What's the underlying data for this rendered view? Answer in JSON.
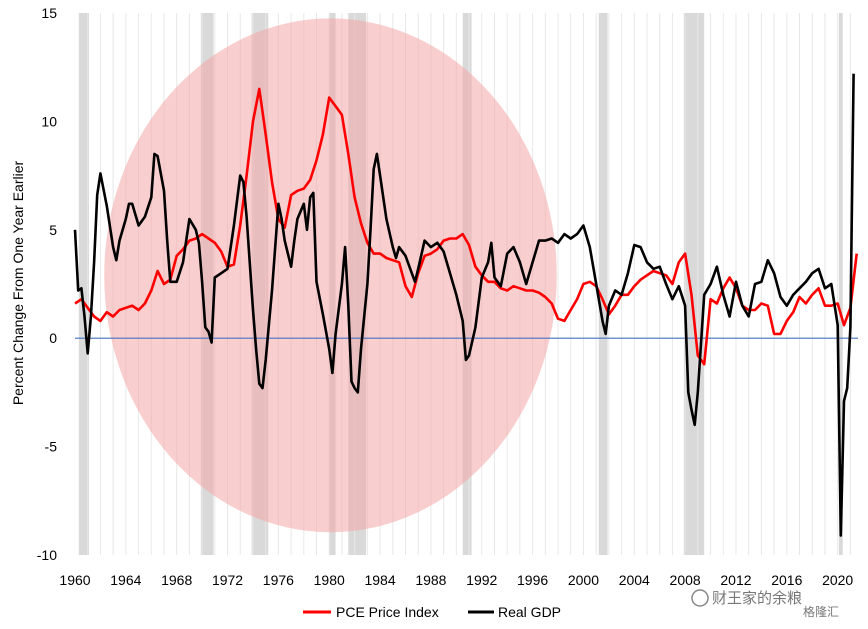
{
  "chart_data": {
    "type": "line",
    "xlim": [
      1960,
      2021.6
    ],
    "ylim": [
      -10,
      15
    ],
    "y_ticks": [
      -10,
      -5,
      0,
      5,
      10,
      15
    ],
    "y_tick_labels": [
      "-10",
      "-5",
      "0",
      "5",
      "10",
      "15"
    ],
    "x_ticks": [
      1960,
      1964,
      1968,
      1972,
      1976,
      1980,
      1984,
      1988,
      1992,
      1996,
      2000,
      2004,
      2008,
      2012,
      2016,
      2020
    ],
    "x_tick_labels": [
      "1960",
      "1964",
      "1968",
      "1972",
      "1976",
      "1980",
      "1984",
      "1988",
      "1992",
      "1996",
      "2000",
      "2004",
      "2008",
      "2012",
      "2016",
      "2020"
    ],
    "ylabel": "Percent Change From One Year Earlier",
    "xlabel": "",
    "grid": "vertical",
    "zero_line_color": "#4472C4",
    "recession_color": "#D9D9D9",
    "recessions": [
      [
        1960.3,
        1961.1
      ],
      [
        1969.9,
        1970.9
      ],
      [
        1973.9,
        1975.2
      ],
      [
        1980.0,
        1980.5
      ],
      [
        1981.5,
        1982.9
      ],
      [
        1990.5,
        1991.2
      ],
      [
        2001.2,
        2001.9
      ],
      [
        2007.9,
        2009.5
      ],
      [
        2020.1,
        2020.4
      ]
    ],
    "highlight_ellipse": {
      "x_center": 1980.1,
      "y_center": 2.9,
      "x_radius": 17.8,
      "y_radius": 11.85,
      "color": "#F4A6A6"
    },
    "legend_position": "bottom-center",
    "series": [
      {
        "name": "PCE Price Index",
        "color": "#FF0000",
        "points": [
          [
            1960,
            1.6
          ],
          [
            1960.5,
            1.8
          ],
          [
            1961,
            1.4
          ],
          [
            1961.5,
            1.0
          ],
          [
            1962,
            0.8
          ],
          [
            1962.5,
            1.2
          ],
          [
            1963,
            1.0
          ],
          [
            1963.5,
            1.3
          ],
          [
            1964,
            1.4
          ],
          [
            1964.5,
            1.5
          ],
          [
            1965,
            1.3
          ],
          [
            1965.5,
            1.6
          ],
          [
            1966,
            2.2
          ],
          [
            1966.5,
            3.1
          ],
          [
            1967,
            2.5
          ],
          [
            1967.5,
            2.7
          ],
          [
            1968,
            3.8
          ],
          [
            1968.5,
            4.1
          ],
          [
            1969,
            4.5
          ],
          [
            1969.5,
            4.6
          ],
          [
            1970,
            4.8
          ],
          [
            1970.5,
            4.6
          ],
          [
            1971,
            4.4
          ],
          [
            1971.5,
            4.0
          ],
          [
            1972,
            3.3
          ],
          [
            1972.5,
            3.4
          ],
          [
            1973,
            5.2
          ],
          [
            1973.5,
            7.5
          ],
          [
            1974,
            10.0
          ],
          [
            1974.5,
            11.5
          ],
          [
            1975,
            9.4
          ],
          [
            1975.5,
            7.2
          ],
          [
            1976,
            5.5
          ],
          [
            1976.5,
            5.1
          ],
          [
            1977,
            6.6
          ],
          [
            1977.5,
            6.8
          ],
          [
            1978,
            6.9
          ],
          [
            1978.5,
            7.3
          ],
          [
            1979,
            8.2
          ],
          [
            1979.5,
            9.4
          ],
          [
            1980,
            11.1
          ],
          [
            1980.5,
            10.7
          ],
          [
            1981,
            10.3
          ],
          [
            1981.5,
            8.5
          ],
          [
            1982,
            6.5
          ],
          [
            1982.5,
            5.3
          ],
          [
            1983,
            4.4
          ],
          [
            1983.5,
            3.9
          ],
          [
            1984,
            3.9
          ],
          [
            1984.5,
            3.7
          ],
          [
            1985,
            3.6
          ],
          [
            1985.5,
            3.5
          ],
          [
            1986,
            2.4
          ],
          [
            1986.5,
            1.9
          ],
          [
            1987,
            3.0
          ],
          [
            1987.5,
            3.8
          ],
          [
            1988,
            3.9
          ],
          [
            1988.5,
            4.1
          ],
          [
            1989,
            4.5
          ],
          [
            1989.5,
            4.6
          ],
          [
            1990,
            4.6
          ],
          [
            1990.5,
            4.8
          ],
          [
            1991,
            4.3
          ],
          [
            1991.5,
            3.3
          ],
          [
            1992,
            2.9
          ],
          [
            1992.5,
            2.6
          ],
          [
            1993,
            2.6
          ],
          [
            1993.5,
            2.3
          ],
          [
            1994,
            2.2
          ],
          [
            1994.5,
            2.4
          ],
          [
            1995,
            2.3
          ],
          [
            1995.5,
            2.2
          ],
          [
            1996,
            2.2
          ],
          [
            1996.5,
            2.1
          ],
          [
            1997,
            1.9
          ],
          [
            1997.5,
            1.6
          ],
          [
            1998,
            0.9
          ],
          [
            1998.5,
            0.8
          ],
          [
            1999,
            1.3
          ],
          [
            1999.5,
            1.8
          ],
          [
            2000,
            2.5
          ],
          [
            2000.5,
            2.6
          ],
          [
            2001,
            2.4
          ],
          [
            2001.5,
            1.8
          ],
          [
            2002,
            1.1
          ],
          [
            2002.5,
            1.5
          ],
          [
            2003,
            2.0
          ],
          [
            2003.5,
            2.0
          ],
          [
            2004,
            2.4
          ],
          [
            2004.5,
            2.7
          ],
          [
            2005,
            2.9
          ],
          [
            2005.5,
            3.1
          ],
          [
            2006,
            3.0
          ],
          [
            2006.5,
            2.9
          ],
          [
            2007,
            2.5
          ],
          [
            2007.5,
            3.5
          ],
          [
            2008,
            3.9
          ],
          [
            2008.5,
            2.0
          ],
          [
            2009,
            -0.8
          ],
          [
            2009.5,
            -1.2
          ],
          [
            2010,
            1.8
          ],
          [
            2010.5,
            1.6
          ],
          [
            2011,
            2.3
          ],
          [
            2011.5,
            2.8
          ],
          [
            2012,
            2.3
          ],
          [
            2012.5,
            1.5
          ],
          [
            2013,
            1.3
          ],
          [
            2013.5,
            1.3
          ],
          [
            2014,
            1.6
          ],
          [
            2014.5,
            1.5
          ],
          [
            2015,
            0.2
          ],
          [
            2015.5,
            0.2
          ],
          [
            2016,
            0.8
          ],
          [
            2016.5,
            1.2
          ],
          [
            2017,
            1.9
          ],
          [
            2017.5,
            1.6
          ],
          [
            2018,
            2.0
          ],
          [
            2018.5,
            2.3
          ],
          [
            2019,
            1.5
          ],
          [
            2019.5,
            1.5
          ],
          [
            2020,
            1.6
          ],
          [
            2020.5,
            0.6
          ],
          [
            2021,
            1.4
          ],
          [
            2021.5,
            3.9
          ]
        ]
      },
      {
        "name": "Real GDP",
        "color": "#000000",
        "points": [
          [
            1960,
            5.0
          ],
          [
            1960.25,
            2.2
          ],
          [
            1960.5,
            2.3
          ],
          [
            1960.75,
            1.0
          ],
          [
            1961,
            -0.7
          ],
          [
            1961.25,
            1.0
          ],
          [
            1961.5,
            3.5
          ],
          [
            1961.75,
            6.6
          ],
          [
            1962,
            7.6
          ],
          [
            1962.5,
            6.1
          ],
          [
            1963,
            4.2
          ],
          [
            1963.25,
            3.6
          ],
          [
            1963.5,
            4.5
          ],
          [
            1964,
            5.5
          ],
          [
            1964.25,
            6.2
          ],
          [
            1964.5,
            6.2
          ],
          [
            1965,
            5.2
          ],
          [
            1965.5,
            5.6
          ],
          [
            1966,
            6.5
          ],
          [
            1966.25,
            8.5
          ],
          [
            1966.5,
            8.4
          ],
          [
            1967,
            6.8
          ],
          [
            1967.25,
            4.5
          ],
          [
            1967.5,
            2.6
          ],
          [
            1968,
            2.6
          ],
          [
            1968.5,
            3.5
          ],
          [
            1969,
            5.5
          ],
          [
            1969.5,
            5.0
          ],
          [
            1969.75,
            4.4
          ],
          [
            1970,
            2.6
          ],
          [
            1970.25,
            0.5
          ],
          [
            1970.5,
            0.3
          ],
          [
            1970.75,
            -0.2
          ],
          [
            1971,
            2.8
          ],
          [
            1971.5,
            3.0
          ],
          [
            1972,
            3.2
          ],
          [
            1972.5,
            5.2
          ],
          [
            1973,
            7.5
          ],
          [
            1973.25,
            7.2
          ],
          [
            1973.5,
            5.6
          ],
          [
            1974,
            1.3
          ],
          [
            1974.25,
            -0.5
          ],
          [
            1974.5,
            -2.1
          ],
          [
            1974.75,
            -2.3
          ],
          [
            1975,
            -1.0
          ],
          [
            1975.5,
            2.2
          ],
          [
            1976,
            6.2
          ],
          [
            1976.25,
            5.5
          ],
          [
            1976.5,
            4.5
          ],
          [
            1977,
            3.3
          ],
          [
            1977.25,
            4.5
          ],
          [
            1977.5,
            5.5
          ],
          [
            1978,
            6.2
          ],
          [
            1978.25,
            5.0
          ],
          [
            1978.5,
            6.5
          ],
          [
            1978.75,
            6.7
          ],
          [
            1979,
            2.6
          ],
          [
            1979.5,
            1.1
          ],
          [
            1980,
            -0.5
          ],
          [
            1980.25,
            -1.6
          ],
          [
            1980.5,
            0.2
          ],
          [
            1981,
            2.5
          ],
          [
            1981.25,
            4.2
          ],
          [
            1981.5,
            1.5
          ],
          [
            1981.75,
            -2.0
          ],
          [
            1982,
            -2.3
          ],
          [
            1982.25,
            -2.5
          ],
          [
            1982.5,
            -0.5
          ],
          [
            1983,
            2.5
          ],
          [
            1983.25,
            5.0
          ],
          [
            1983.5,
            7.8
          ],
          [
            1983.75,
            8.5
          ],
          [
            1984,
            7.5
          ],
          [
            1984.5,
            5.5
          ],
          [
            1985,
            4.2
          ],
          [
            1985.25,
            3.7
          ],
          [
            1985.5,
            4.2
          ],
          [
            1986,
            3.8
          ],
          [
            1986.5,
            3.0
          ],
          [
            1986.75,
            2.6
          ],
          [
            1987,
            3.2
          ],
          [
            1987.5,
            4.5
          ],
          [
            1988,
            4.2
          ],
          [
            1988.5,
            4.4
          ],
          [
            1989,
            4.0
          ],
          [
            1989.5,
            3.0
          ],
          [
            1990,
            2.0
          ],
          [
            1990.5,
            0.8
          ],
          [
            1990.75,
            -1.0
          ],
          [
            1991,
            -0.8
          ],
          [
            1991.5,
            0.5
          ],
          [
            1992,
            2.8
          ],
          [
            1992.5,
            3.5
          ],
          [
            1992.75,
            4.4
          ],
          [
            1993,
            2.8
          ],
          [
            1993.5,
            2.4
          ],
          [
            1994,
            3.9
          ],
          [
            1994.5,
            4.2
          ],
          [
            1995,
            3.5
          ],
          [
            1995.5,
            2.5
          ],
          [
            1996,
            3.5
          ],
          [
            1996.5,
            4.5
          ],
          [
            1997,
            4.5
          ],
          [
            1997.5,
            4.6
          ],
          [
            1998,
            4.4
          ],
          [
            1998.5,
            4.8
          ],
          [
            1999,
            4.6
          ],
          [
            1999.5,
            4.8
          ],
          [
            2000,
            5.2
          ],
          [
            2000.5,
            4.2
          ],
          [
            2001,
            2.5
          ],
          [
            2001.5,
            0.8
          ],
          [
            2001.75,
            0.2
          ],
          [
            2002,
            1.5
          ],
          [
            2002.5,
            2.2
          ],
          [
            2003,
            2.0
          ],
          [
            2003.5,
            3.0
          ],
          [
            2004,
            4.3
          ],
          [
            2004.5,
            4.2
          ],
          [
            2005,
            3.5
          ],
          [
            2005.5,
            3.2
          ],
          [
            2006,
            3.3
          ],
          [
            2006.5,
            2.5
          ],
          [
            2007,
            1.8
          ],
          [
            2007.5,
            2.4
          ],
          [
            2008,
            1.5
          ],
          [
            2008.25,
            -2.5
          ],
          [
            2008.5,
            -3.3
          ],
          [
            2008.75,
            -4.0
          ],
          [
            2009,
            -2.5
          ],
          [
            2009.5,
            2.0
          ],
          [
            2010,
            2.5
          ],
          [
            2010.5,
            3.3
          ],
          [
            2011,
            2.0
          ],
          [
            2011.5,
            1.0
          ],
          [
            2012,
            2.6
          ],
          [
            2012.5,
            1.5
          ],
          [
            2013,
            1.0
          ],
          [
            2013.5,
            2.5
          ],
          [
            2014,
            2.6
          ],
          [
            2014.5,
            3.6
          ],
          [
            2015,
            3.0
          ],
          [
            2015.5,
            1.9
          ],
          [
            2016,
            1.5
          ],
          [
            2016.5,
            2.0
          ],
          [
            2017,
            2.3
          ],
          [
            2017.5,
            2.6
          ],
          [
            2018,
            3.0
          ],
          [
            2018.5,
            3.2
          ],
          [
            2019,
            2.3
          ],
          [
            2019.5,
            2.5
          ],
          [
            2020,
            0.6
          ],
          [
            2020.25,
            -9.1
          ],
          [
            2020.5,
            -2.9
          ],
          [
            2020.75,
            -2.3
          ],
          [
            2021,
            0.5
          ],
          [
            2021.25,
            12.2
          ]
        ]
      }
    ]
  },
  "watermark": {
    "text": "财王家的余粮",
    "sub_text": "格隆汇"
  }
}
